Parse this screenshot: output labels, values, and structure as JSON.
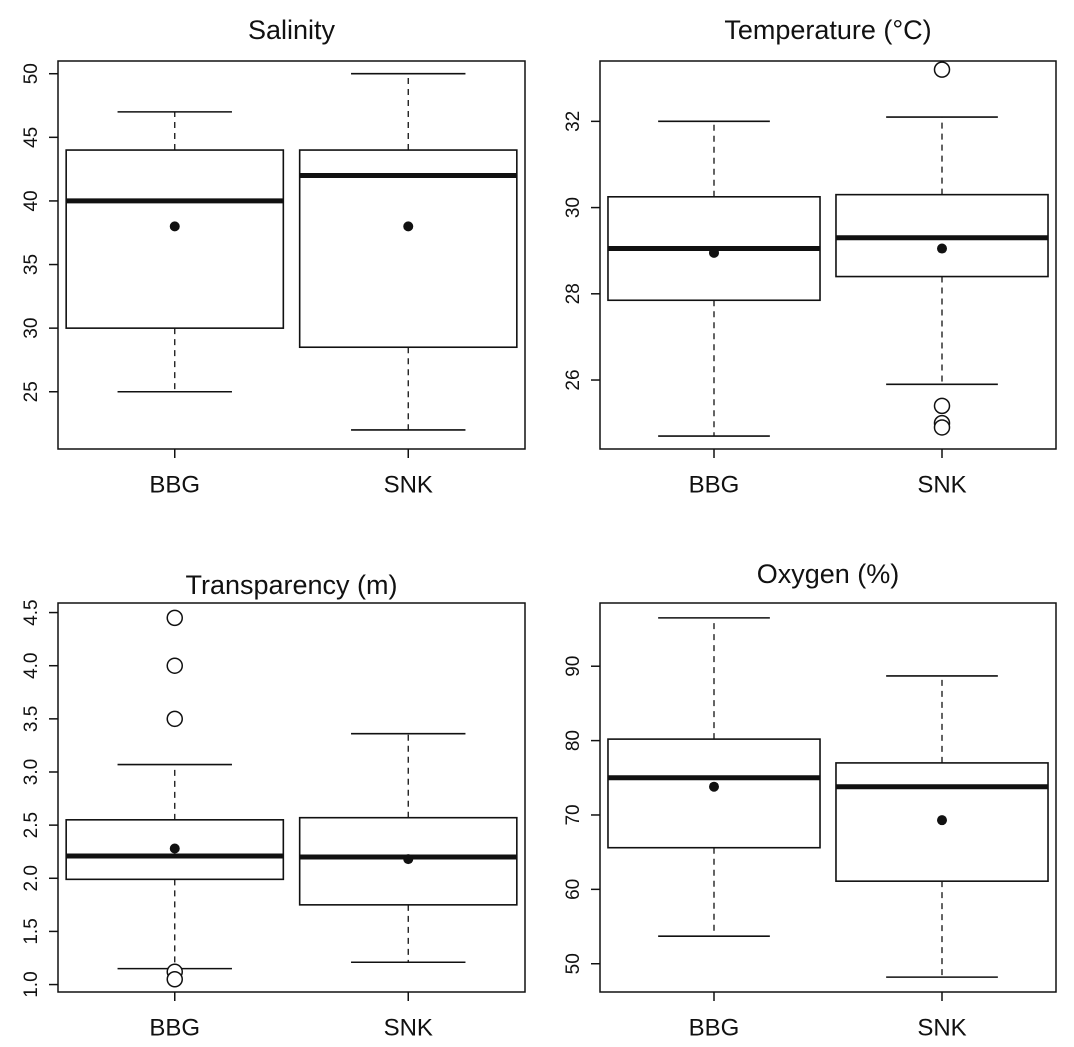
{
  "chart_data": [
    {
      "type": "box",
      "title": "Salinity",
      "categories": [
        "BBG",
        "SNK"
      ],
      "ylim": [
        20.5,
        51
      ],
      "yticks": [
        25,
        30,
        35,
        40,
        45,
        50
      ],
      "boxes": [
        {
          "name": "BBG",
          "min": 25,
          "q1": 30,
          "median": 40,
          "q3": 44,
          "max": 47,
          "mean": 38,
          "outliers": []
        },
        {
          "name": "SNK",
          "min": 22,
          "q1": 28.5,
          "median": 42,
          "q3": 44,
          "max": 50,
          "mean": 38,
          "outliers": []
        }
      ]
    },
    {
      "type": "box",
      "title": "Temperature (°C)",
      "categories": [
        "BBG",
        "SNK"
      ],
      "ylim": [
        24.4,
        33.4
      ],
      "yticks": [
        26,
        28,
        30,
        32
      ],
      "boxes": [
        {
          "name": "BBG",
          "min": 24.7,
          "q1": 27.85,
          "median": 29.05,
          "q3": 30.25,
          "max": 32,
          "mean": 28.95,
          "outliers": []
        },
        {
          "name": "SNK",
          "min": 25.9,
          "q1": 28.4,
          "median": 29.3,
          "q3": 30.3,
          "max": 32.1,
          "mean": 29.05,
          "outliers": [
            33.2,
            25.4,
            25.0,
            24.9
          ]
        }
      ]
    },
    {
      "type": "box",
      "title": "Transparency (m)",
      "categories": [
        "BBG",
        "SNK"
      ],
      "ylim": [
        0.93,
        4.59
      ],
      "yticks": [
        1.0,
        1.5,
        2.0,
        2.5,
        3.0,
        3.5,
        4.0,
        4.5
      ],
      "boxes": [
        {
          "name": "BBG",
          "min": 1.15,
          "q1": 1.99,
          "median": 2.21,
          "q3": 2.55,
          "max": 3.07,
          "mean": 2.28,
          "outliers": [
            4.45,
            4.0,
            3.5,
            1.12,
            1.05
          ]
        },
        {
          "name": "SNK",
          "min": 1.21,
          "q1": 1.75,
          "median": 2.2,
          "q3": 2.57,
          "max": 3.36,
          "mean": 2.18,
          "outliers": []
        }
      ]
    },
    {
      "type": "box",
      "title": "Oxygen (%)",
      "categories": [
        "BBG",
        "SNK"
      ],
      "ylim": [
        46.2,
        98.5
      ],
      "yticks": [
        50,
        60,
        70,
        80,
        90
      ],
      "boxes": [
        {
          "name": "BBG",
          "min": 53.7,
          "q1": 65.6,
          "median": 75,
          "q3": 80.2,
          "max": 96.5,
          "mean": 73.8,
          "outliers": []
        },
        {
          "name": "SNK",
          "min": 48.2,
          "q1": 61.1,
          "median": 73.8,
          "q3": 77,
          "max": 88.7,
          "mean": 69.3,
          "outliers": []
        }
      ]
    }
  ]
}
